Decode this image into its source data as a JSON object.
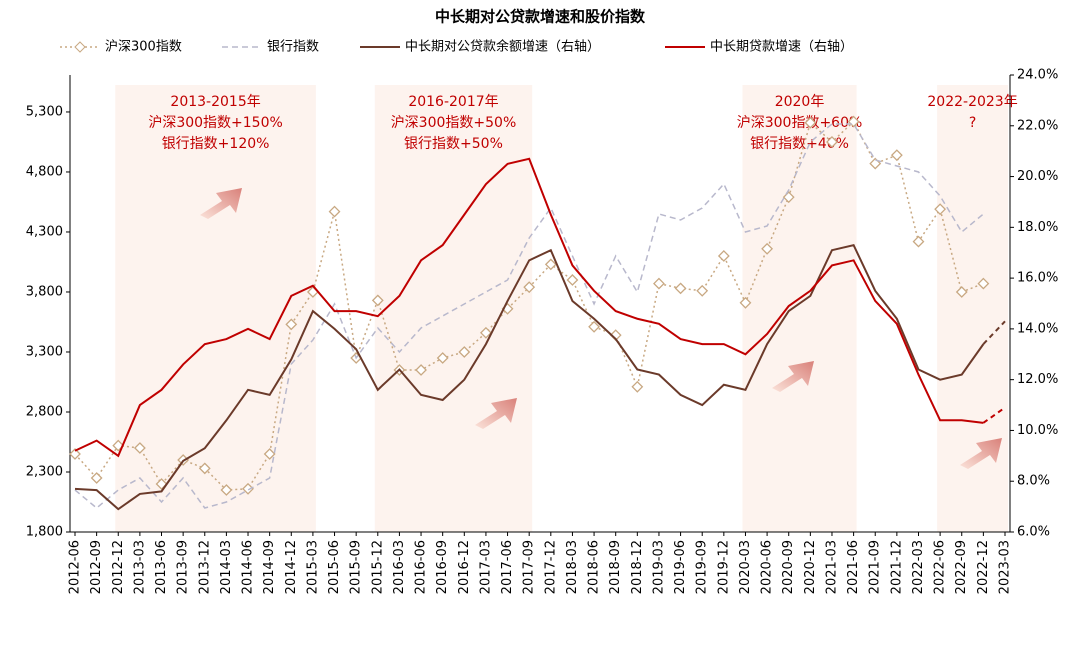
{
  "chart_data": {
    "type": "line",
    "title": "中长期对公贷款增速和股价指数",
    "categories": [
      "2012-06",
      "2012-09",
      "2012-12",
      "2013-03",
      "2013-06",
      "2013-09",
      "2013-12",
      "2014-03",
      "2014-06",
      "2014-09",
      "2014-12",
      "2015-03",
      "2015-06",
      "2015-09",
      "2015-12",
      "2016-03",
      "2016-06",
      "2016-09",
      "2016-12",
      "2017-03",
      "2017-06",
      "2017-09",
      "2017-12",
      "2018-03",
      "2018-06",
      "2018-09",
      "2018-12",
      "2019-03",
      "2019-06",
      "2019-09",
      "2019-12",
      "2020-03",
      "2020-06",
      "2020-09",
      "2020-12",
      "2021-03",
      "2021-06",
      "2021-09",
      "2021-12",
      "2022-03",
      "2022-06",
      "2022-09",
      "2022-12",
      "2023-03"
    ],
    "ylim": [
      1800,
      5608
    ],
    "yticks": [
      {
        "value": 1800,
        "label": "1,800"
      },
      {
        "value": 2300,
        "label": "2,300"
      },
      {
        "value": 2800,
        "label": "2,800"
      },
      {
        "value": 3300,
        "label": "3,300"
      },
      {
        "value": 3800,
        "label": "3,800"
      },
      {
        "value": 4300,
        "label": "4,300"
      },
      {
        "value": 4800,
        "label": "4,800"
      },
      {
        "value": 5300,
        "label": "5,300"
      }
    ],
    "y2lim": [
      6,
      24
    ],
    "y2ticks": [
      {
        "value": 6,
        "label": "6.0%"
      },
      {
        "value": 8,
        "label": "8.0%"
      },
      {
        "value": 10,
        "label": "10.0%"
      },
      {
        "value": 12,
        "label": "12.0%"
      },
      {
        "value": 14,
        "label": "14.0%"
      },
      {
        "value": 16,
        "label": "16.0%"
      },
      {
        "value": 18,
        "label": "18.0%"
      },
      {
        "value": 20,
        "label": "20.0%"
      },
      {
        "value": 22,
        "label": "22.0%"
      },
      {
        "value": 24,
        "label": "24.0%"
      }
    ],
    "series": [
      {
        "name": "沪深300指数",
        "color": "#c8a882",
        "style": "dotted-diamond",
        "values": [
          2450,
          2250,
          2520,
          2500,
          2200,
          2400,
          2330,
          2150,
          2160,
          2450,
          3530,
          3800,
          4470,
          3250,
          3730,
          3150,
          3150,
          3250,
          3300,
          3460,
          3660,
          3840,
          4030,
          3900,
          3510,
          3440,
          3010,
          3870,
          3830,
          3810,
          4100,
          3710,
          4160,
          4590,
          5210,
          5050,
          5220,
          4870,
          4940,
          4220,
          4490,
          3800,
          3870,
          null
        ]
      },
      {
        "name": "银行指数",
        "color": "#b8b8cc",
        "style": "dashed",
        "values": [
          2150,
          2000,
          2150,
          2250,
          2050,
          2250,
          2000,
          2050,
          2150,
          2250,
          3200,
          3400,
          3700,
          3250,
          3500,
          3300,
          3500,
          3600,
          3700,
          3800,
          3900,
          4250,
          4500,
          4100,
          3700,
          4100,
          3800,
          4450,
          4400,
          4500,
          4700,
          4300,
          4350,
          4650,
          5050,
          5200,
          5200,
          4900,
          4850,
          4800,
          4600,
          4300,
          4450,
          null
        ]
      },
      {
        "name": "中长期对公贷款余额增速（右轴）",
        "color": "#6b3a2a",
        "style": "solid",
        "axis": "y2",
        "dashed_from": "2022-12",
        "values": [
          7.7,
          7.65,
          6.9,
          7.5,
          7.6,
          8.8,
          9.3,
          10.4,
          11.6,
          11.4,
          12.8,
          14.7,
          14.0,
          13.2,
          11.6,
          12.4,
          11.4,
          11.2,
          12.0,
          13.4,
          15.1,
          16.7,
          17.1,
          15.1,
          14.4,
          13.6,
          12.4,
          12.2,
          11.4,
          11.0,
          11.8,
          11.6,
          13.4,
          14.7,
          15.3,
          17.1,
          17.3,
          15.5,
          14.4,
          12.4,
          12.0,
          12.2,
          13.4,
          14.3
        ]
      },
      {
        "name": "中长期贷款增速（右轴）",
        "color": "#c00000",
        "style": "solid",
        "axis": "y2",
        "dashed_from": "2022-12",
        "values": [
          9.2,
          9.6,
          9.0,
          11.0,
          11.6,
          12.6,
          13.4,
          13.6,
          14.0,
          13.6,
          15.3,
          15.7,
          14.7,
          14.7,
          14.5,
          15.3,
          16.7,
          17.3,
          18.5,
          19.7,
          20.5,
          20.7,
          18.5,
          16.5,
          15.5,
          14.7,
          14.4,
          14.2,
          13.6,
          13.4,
          13.4,
          13.0,
          13.8,
          14.9,
          15.5,
          16.5,
          16.7,
          15.1,
          14.2,
          12.2,
          10.4,
          10.4,
          10.3,
          10.9
        ]
      }
    ],
    "annotations": [
      {
        "start": "2012-12",
        "end": "2015-03",
        "text": [
          "2013-2015年",
          "沪深300指数+150%",
          "银行指数+120%"
        ]
      },
      {
        "start": "2015-12",
        "end": "2017-09",
        "text": [
          "2016-2017年",
          "沪深300指数+50%",
          "银行指数+50%"
        ]
      },
      {
        "start": "2020-03",
        "end": "2021-06",
        "text": [
          "2020年",
          "沪深300指数+60%",
          "银行指数+40%"
        ]
      },
      {
        "start": "2022-06",
        "end": "2023-03",
        "text": [
          "2022-2023年",
          "?"
        ]
      }
    ]
  }
}
